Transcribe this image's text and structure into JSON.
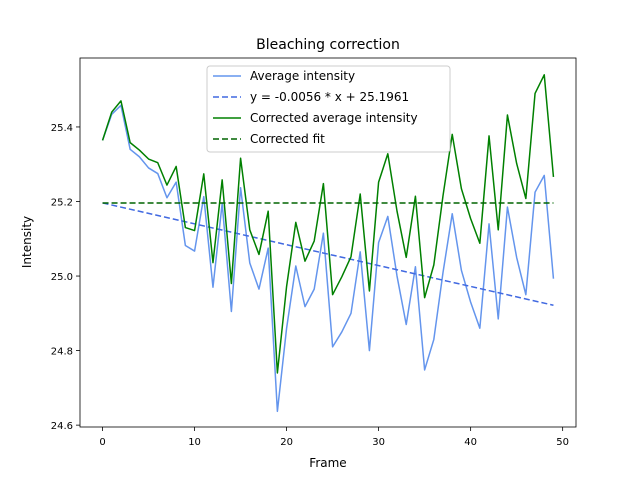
{
  "chart_data": {
    "type": "line",
    "title": "Bleaching correction",
    "xlabel": "Frame",
    "ylabel": "Intensity",
    "xlim": [
      -2.45,
      51.45
    ],
    "ylim": [
      24.595,
      25.585
    ],
    "xticks": [
      0,
      10,
      20,
      30,
      40,
      50
    ],
    "yticks": [
      24.6,
      24.8,
      25.0,
      25.2,
      25.4
    ],
    "ytick_labels": [
      "24.6",
      "24.8",
      "25.0",
      "25.2",
      "25.4"
    ],
    "legend_position": "upper center",
    "x": [
      0,
      1,
      2,
      3,
      4,
      5,
      6,
      7,
      8,
      9,
      10,
      11,
      12,
      13,
      14,
      15,
      16,
      17,
      18,
      19,
      20,
      21,
      22,
      23,
      24,
      25,
      26,
      27,
      28,
      29,
      30,
      31,
      32,
      33,
      34,
      35,
      36,
      37,
      38,
      39,
      40,
      41,
      42,
      43,
      44,
      45,
      46,
      47,
      48,
      49
    ],
    "series": [
      {
        "name": "Average intensity",
        "color": "#6495ED",
        "style": "solid",
        "values": [
          25.364,
          25.434,
          25.458,
          25.34,
          25.32,
          25.29,
          25.275,
          25.21,
          25.252,
          25.082,
          25.067,
          25.213,
          24.97,
          25.195,
          24.905,
          25.237,
          25.035,
          24.965,
          25.075,
          24.637,
          24.86,
          25.027,
          24.918,
          24.965,
          25.115,
          24.81,
          24.85,
          24.9,
          25.065,
          24.8,
          25.09,
          25.16,
          25.0,
          24.87,
          25.025,
          24.748,
          24.83,
          25.01,
          25.167,
          25.015,
          24.93,
          24.86,
          25.14,
          24.885,
          25.185,
          25.05,
          24.95,
          25.225,
          25.27,
          24.993
        ]
      },
      {
        "name": "y = -0.0056 * x + 25.1961",
        "color": "#4169E1",
        "style": "dashed",
        "line": {
          "slope": -0.0056,
          "intercept": 25.1961
        }
      },
      {
        "name": "Corrected average intensity",
        "color": "#008000",
        "style": "solid",
        "values": [
          25.364,
          25.44,
          25.47,
          25.358,
          25.338,
          25.314,
          25.304,
          25.244,
          25.294,
          25.13,
          25.122,
          25.274,
          25.036,
          25.258,
          24.98,
          25.316,
          25.124,
          25.058,
          25.174,
          24.74,
          24.972,
          25.144,
          25.04,
          25.094,
          25.248,
          24.95,
          24.998,
          25.052,
          25.22,
          24.96,
          25.252,
          25.328,
          25.174,
          25.05,
          25.214,
          24.942,
          25.03,
          25.216,
          25.38,
          25.234,
          25.154,
          25.088,
          25.376,
          25.124,
          25.432,
          25.302,
          25.208,
          25.49,
          25.54,
          25.266
        ]
      },
      {
        "name": "Corrected fit",
        "color": "#006400",
        "style": "dashed",
        "line": {
          "slope": 0,
          "intercept": 25.1961
        }
      }
    ]
  }
}
